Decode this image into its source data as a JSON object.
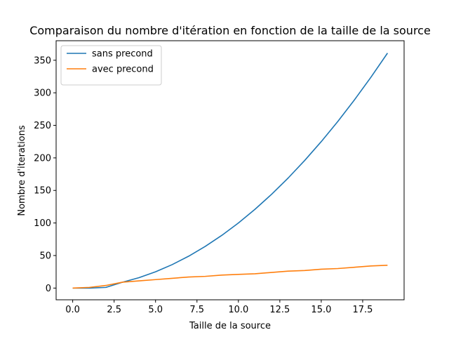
{
  "chart_data": {
    "type": "line",
    "title": "Comparaison du nombre d'itération en fonction de la taille de la source",
    "xlabel": "Taille de la source",
    "ylabel": "Nombre d'iterations",
    "xlim": [
      -1.0,
      20.0
    ],
    "ylim": [
      -18,
      380
    ],
    "xticks": [
      0,
      2.5,
      5,
      7.5,
      10,
      12.5,
      15,
      17.5
    ],
    "xtick_labels": [
      "0.0",
      "2.5",
      "5.0",
      "7.5",
      "10.0",
      "12.5",
      "15.0",
      "17.5"
    ],
    "yticks": [
      0,
      50,
      100,
      150,
      200,
      250,
      300,
      350
    ],
    "ytick_labels": [
      "0",
      "50",
      "100",
      "150",
      "200",
      "250",
      "300",
      "350"
    ],
    "grid": false,
    "legend_position": "top-left",
    "x": [
      0,
      1,
      2,
      3,
      4,
      5,
      6,
      7,
      8,
      9,
      10,
      11,
      12,
      13,
      14,
      15,
      16,
      17,
      18,
      19
    ],
    "series": [
      {
        "name": "sans precond",
        "color": "#1f77b4",
        "values": [
          0,
          0,
          1,
          9,
          16,
          25,
          36,
          49,
          64,
          81,
          100,
          121,
          144,
          169,
          196,
          225,
          256,
          289,
          324,
          361
        ]
      },
      {
        "name": "avec precond",
        "color": "#ff7f0e",
        "values": [
          0,
          1,
          4,
          9,
          11,
          13,
          15,
          17,
          18,
          20,
          21,
          22,
          24,
          26,
          27,
          29,
          30,
          32,
          34,
          35
        ]
      }
    ]
  }
}
